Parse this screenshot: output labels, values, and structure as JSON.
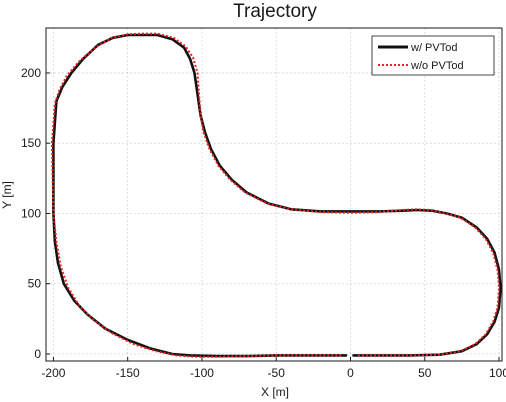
{
  "chart_data": {
    "type": "line",
    "title": "Trajectory",
    "xlabel": "X [m]",
    "ylabel": "Y [m]",
    "xlim": [
      -205,
      102
    ],
    "ylim": [
      -5,
      232
    ],
    "xticks": [
      -200,
      -150,
      -100,
      -50,
      0,
      50,
      100
    ],
    "yticks": [
      0,
      50,
      100,
      150,
      200
    ],
    "xtick_labels": [
      "-200",
      "-150",
      "-100",
      "-50",
      "0",
      "50",
      "100"
    ],
    "ytick_labels": [
      "0",
      "50",
      "100",
      "150",
      "200"
    ],
    "grid": true,
    "legend_position": "top-right",
    "series": [
      {
        "name": "w/  PVTod",
        "color": "#111111",
        "style": "solid",
        "x": [
          2,
          20,
          40,
          60,
          75,
          85,
          92,
          97,
          100,
          101,
          100,
          97,
          92,
          85,
          75,
          65,
          55,
          45,
          35,
          20,
          0,
          -20,
          -40,
          -55,
          -70,
          -80,
          -88,
          -94,
          -98,
          -101,
          -103,
          -105,
          -108,
          -112,
          -120,
          -130,
          -140,
          -150,
          -160,
          -170,
          -180,
          -188,
          -194,
          -198,
          -200,
          -200,
          -199,
          -197,
          -193,
          -186,
          -177,
          -165,
          -150,
          -135,
          -120,
          -108,
          -90,
          -70,
          -50,
          -30,
          -10,
          -3
        ],
        "y": [
          -1,
          -1,
          -1,
          -0.5,
          2,
          7,
          14,
          23,
          33,
          47,
          60,
          72,
          82,
          90,
          97,
          100,
          102,
          102.5,
          102,
          101.5,
          101.5,
          101.5,
          103,
          107,
          115,
          124,
          134,
          146,
          158,
          170,
          185,
          200,
          210,
          218,
          224,
          227,
          227,
          227,
          225,
          220,
          210,
          200,
          190,
          180,
          150,
          100,
          80,
          65,
          50,
          38,
          28,
          18,
          10,
          4,
          0,
          -1,
          -1.5,
          -1.5,
          -1,
          -1,
          -1,
          -1
        ]
      },
      {
        "name": "w/o PVTod",
        "color": "#e8201e",
        "style": "dotted",
        "x": [
          5,
          20,
          40,
          60,
          74,
          84,
          91,
          96,
          99,
          100,
          99,
          96,
          91,
          84,
          74,
          64,
          54,
          44,
          34,
          19,
          0,
          -20,
          -40,
          -56,
          -71,
          -81,
          -89,
          -95,
          -99,
          -101,
          -102,
          -103,
          -106,
          -111,
          -119,
          -130,
          -140,
          -150,
          -161,
          -172,
          -183,
          -191,
          -196,
          -199,
          -201,
          -200,
          -198,
          -195,
          -190,
          -183,
          -174,
          -161,
          -146,
          -131,
          -117,
          -105,
          -90,
          -70,
          -50,
          -30,
          -10,
          -5
        ],
        "y": [
          -1,
          -1,
          -1,
          -0.5,
          2,
          7,
          14,
          23,
          33,
          47,
          60,
          72,
          82,
          90,
          97,
          100,
          102.5,
          103,
          102.5,
          101,
          100.5,
          101,
          103,
          107,
          115,
          124,
          134,
          146,
          158,
          170,
          185,
          200,
          211,
          219,
          225,
          228,
          228,
          227.5,
          225,
          218,
          208,
          198,
          188,
          178,
          150,
          100,
          80,
          62,
          47,
          35,
          25,
          15,
          7,
          2,
          -1,
          -2,
          -2,
          -1.5,
          -1,
          -1,
          -1,
          -1
        ]
      }
    ]
  }
}
